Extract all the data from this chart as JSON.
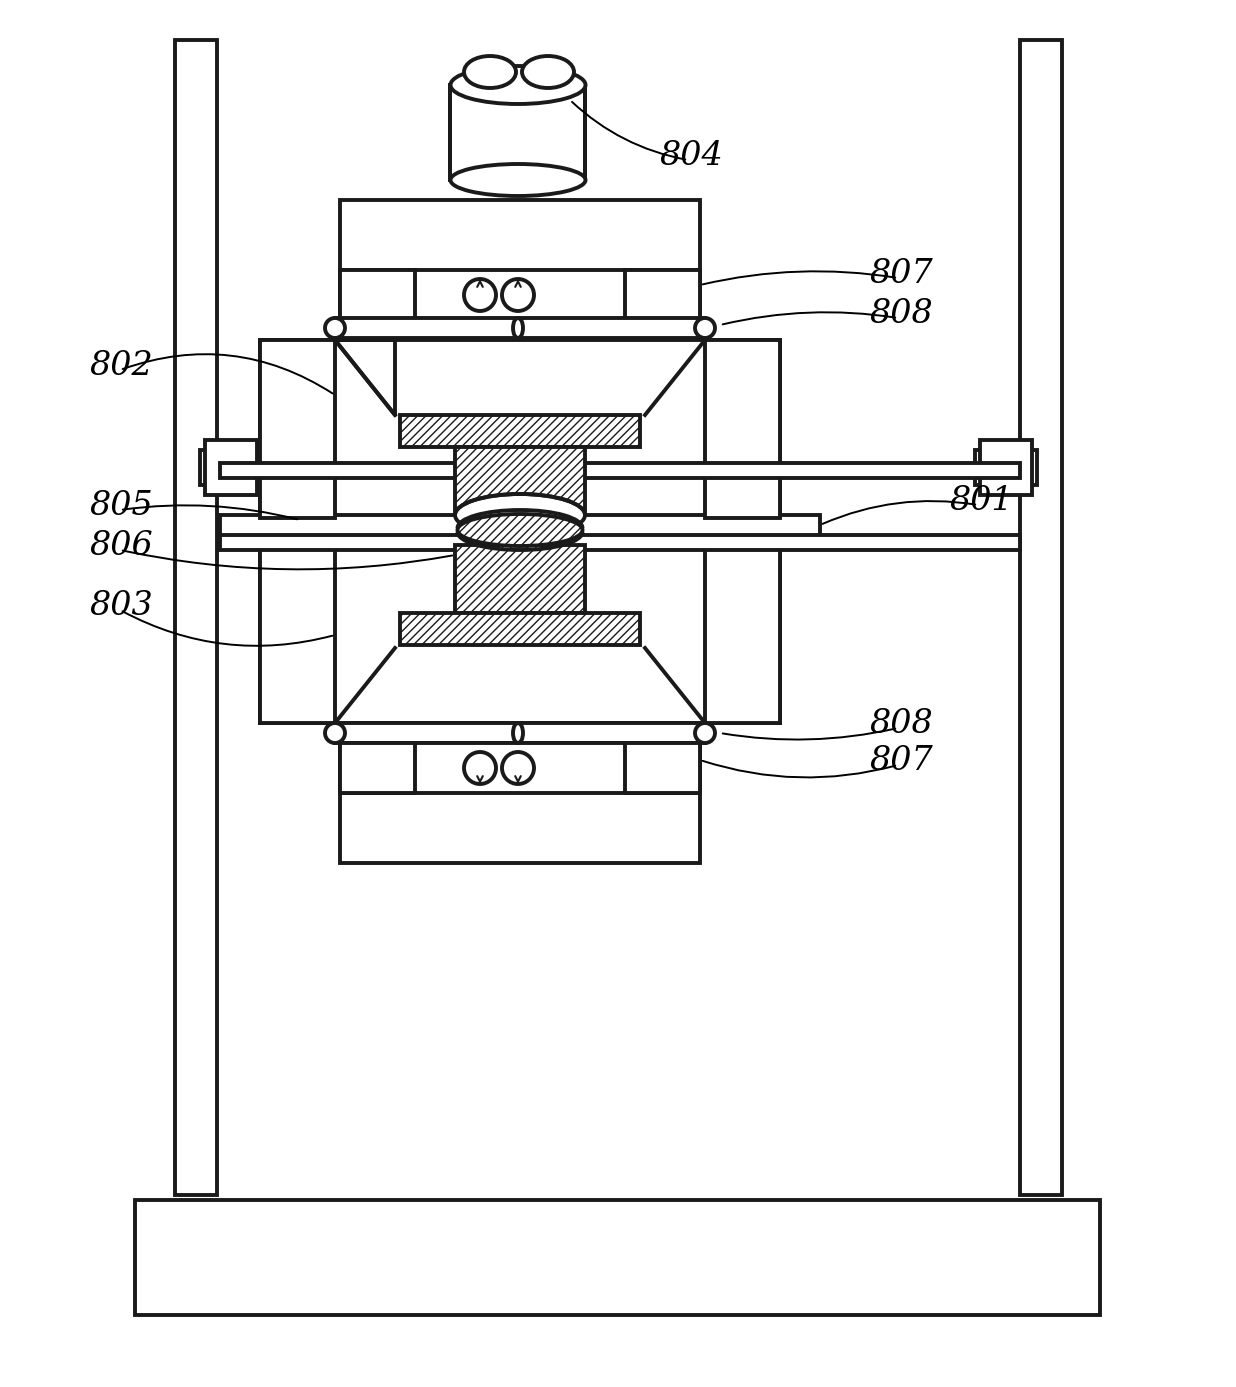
{
  "bg_color": "#ffffff",
  "line_color": "#1a1a1a",
  "lw": 2.8,
  "lw_thin": 1.4
}
